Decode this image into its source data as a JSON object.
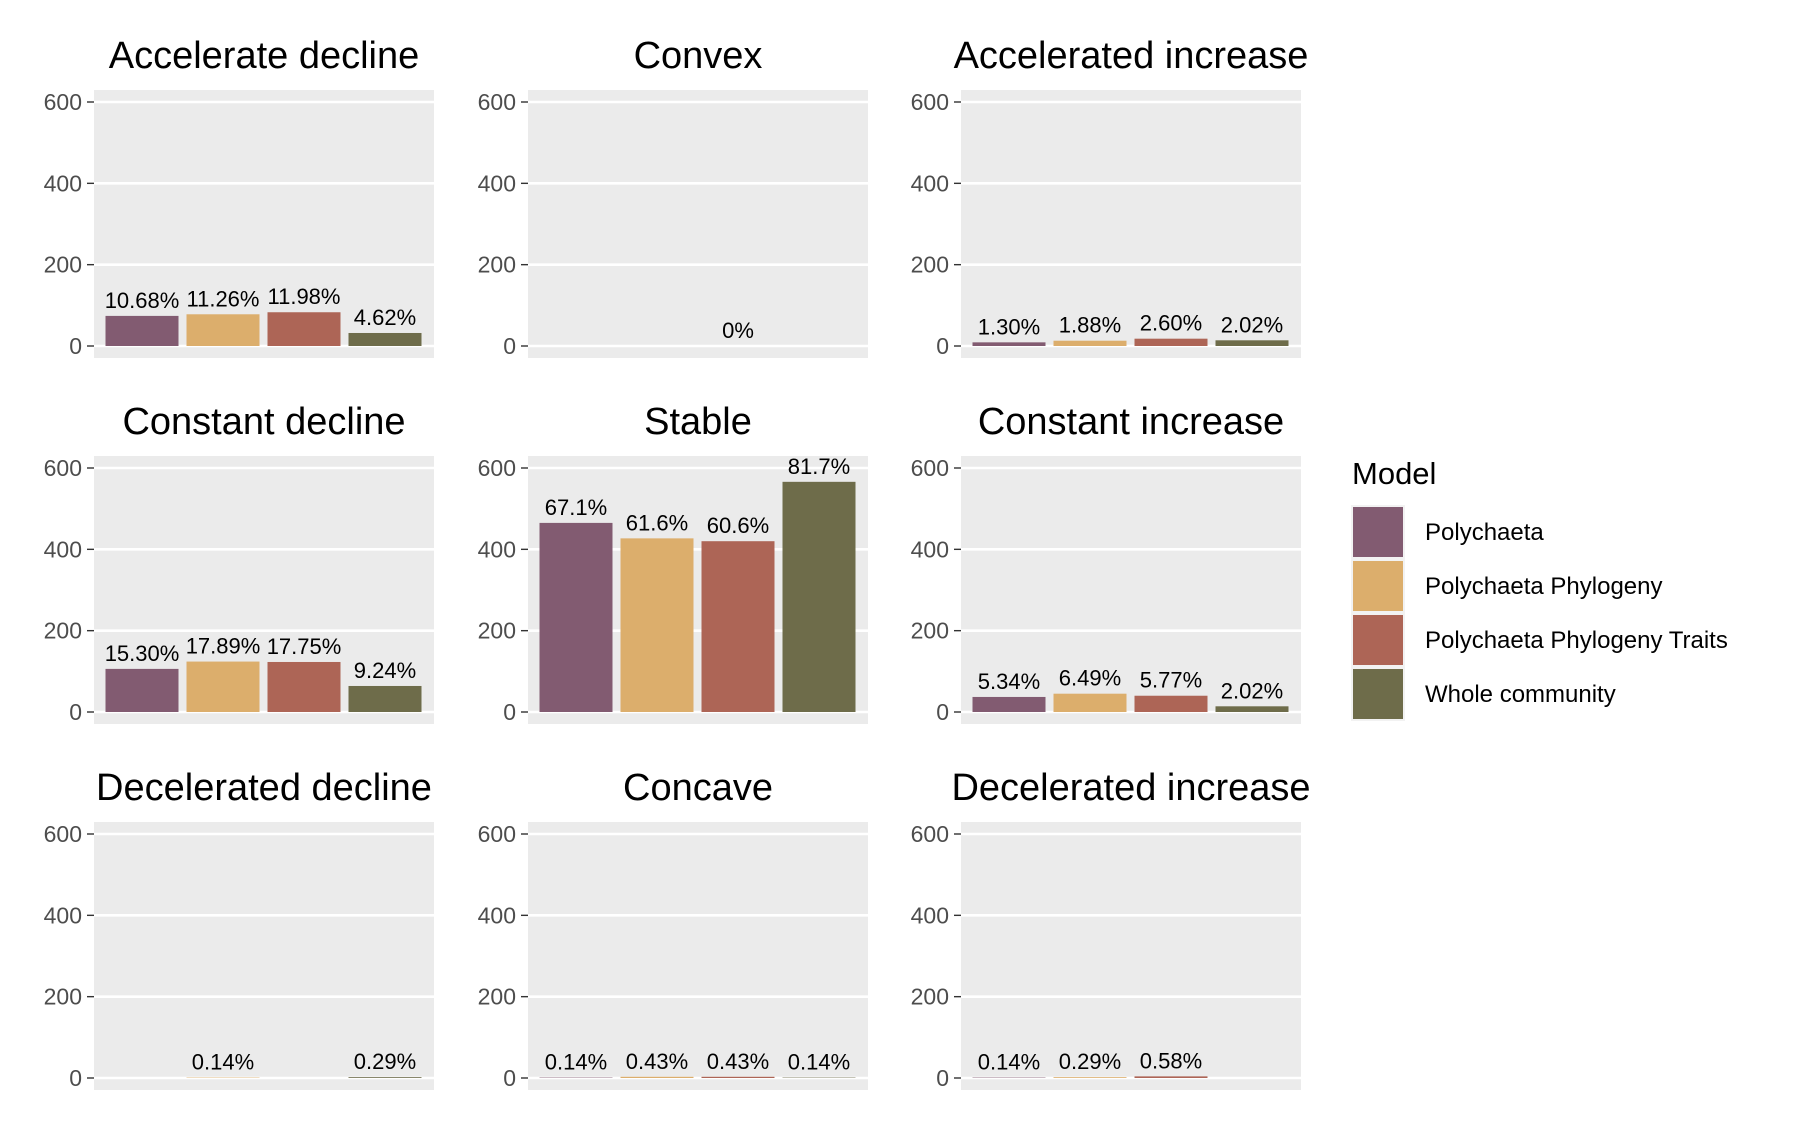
{
  "chart_data": {
    "type": "bar",
    "layout": "faceted 3x3 grid",
    "ylim": [
      0,
      600
    ],
    "yticks": [
      0,
      200,
      400,
      600
    ],
    "grid": true,
    "legend_position": "right",
    "legend": {
      "title": "Model",
      "entries": [
        "Polychaeta",
        "Polychaeta Phylogeny",
        "Polychaeta Phylogeny Traits",
        "Whole community"
      ]
    },
    "colors": [
      "#825b71",
      "#dcae6c",
      "#ad6556",
      "#6e6c4a"
    ],
    "panels": [
      {
        "title": "Accelerate decline",
        "values": [
          74,
          78,
          83,
          32
        ],
        "labels": [
          "10.68%",
          "11.26%",
          "11.98%",
          "4.62%"
        ]
      },
      {
        "title": "Convex",
        "values": [
          0,
          0,
          0,
          0
        ],
        "labels": [
          "",
          "",
          "0%",
          ""
        ]
      },
      {
        "title": "Accelerated increase",
        "values": [
          9,
          13,
          18,
          14
        ],
        "labels": [
          "1.30%",
          "1.88%",
          "2.60%",
          "2.02%"
        ]
      },
      {
        "title": "Constant decline",
        "values": [
          106,
          124,
          123,
          64
        ],
        "labels": [
          "15.30%",
          "17.89%",
          "17.75%",
          "9.24%"
        ]
      },
      {
        "title": "Stable",
        "values": [
          465,
          427,
          420,
          566
        ],
        "labels": [
          "67.1%",
          "61.6%",
          "60.6%",
          "81.7%"
        ]
      },
      {
        "title": "Constant increase",
        "values": [
          37,
          45,
          40,
          14
        ],
        "labels": [
          "5.34%",
          "6.49%",
          "5.77%",
          "2.02%"
        ]
      },
      {
        "title": "Decelerated decline",
        "values": [
          0,
          1,
          0,
          2
        ],
        "labels": [
          "",
          "0.14%",
          "",
          "0.29%"
        ]
      },
      {
        "title": "Concave",
        "values": [
          1,
          3,
          3,
          1
        ],
        "labels": [
          "0.14%",
          "0.43%",
          "0.43%",
          "0.14%"
        ]
      },
      {
        "title": "Decelerated increase",
        "values": [
          1,
          2,
          4,
          0
        ],
        "labels": [
          "0.14%",
          "0.29%",
          "0.58%",
          ""
        ]
      }
    ]
  }
}
